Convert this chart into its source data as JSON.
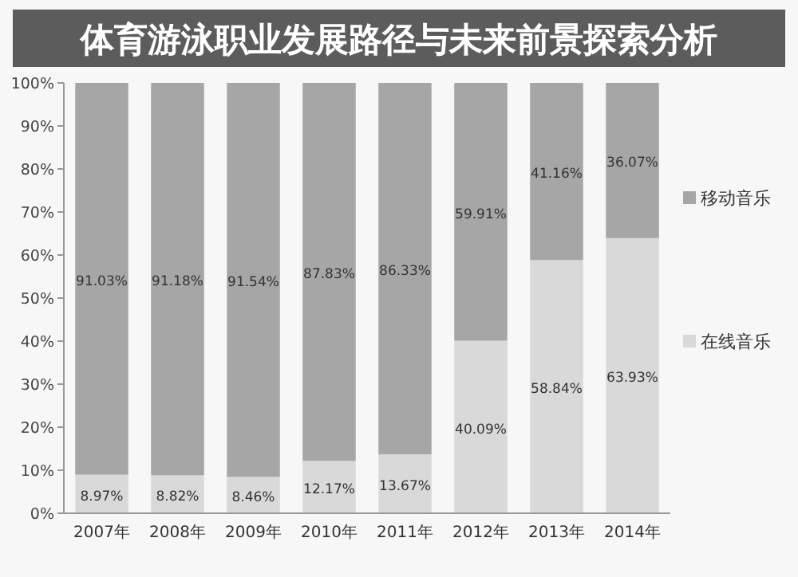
{
  "chart_data": {
    "type": "bar",
    "stacked": true,
    "title": "体育游泳职业发展路径与未来前景探索分析",
    "categories": [
      "2007年",
      "2008年",
      "2009年",
      "2010年",
      "2011年",
      "2012年",
      "2013年",
      "2014年"
    ],
    "series": [
      {
        "name": "在线音乐",
        "color": "#d9d9d9",
        "values": [
          8.97,
          8.82,
          8.46,
          12.17,
          13.67,
          40.09,
          58.84,
          63.93
        ],
        "value_labels": [
          "8.97%",
          "8.82%",
          "8.46%",
          "12.17%",
          "13.67%",
          "40.09%",
          "58.84%",
          "63.93%"
        ]
      },
      {
        "name": "移动音乐",
        "color": "#a6a6a6",
        "values": [
          91.03,
          91.18,
          91.54,
          87.83,
          86.33,
          59.91,
          41.16,
          36.07
        ],
        "value_labels": [
          "91.03%",
          "91.18%",
          "91.54%",
          "87.83%",
          "86.33%",
          "59.91%",
          "41.16%",
          "36.07%"
        ]
      }
    ],
    "ylim": [
      0,
      100
    ],
    "yticks": [
      {
        "value": 0,
        "label": "0%"
      },
      {
        "value": 10,
        "label": "10%"
      },
      {
        "value": 20,
        "label": "20%"
      },
      {
        "value": 30,
        "label": "30%"
      },
      {
        "value": 40,
        "label": "40%"
      },
      {
        "value": 50,
        "label": "50%"
      },
      {
        "value": 60,
        "label": "60%"
      },
      {
        "value": 70,
        "label": "70%"
      },
      {
        "value": 80,
        "label": "80%"
      },
      {
        "value": 90,
        "label": "90%"
      },
      {
        "value": 100,
        "label": "100%"
      }
    ],
    "legend": "right",
    "grid": false
  }
}
